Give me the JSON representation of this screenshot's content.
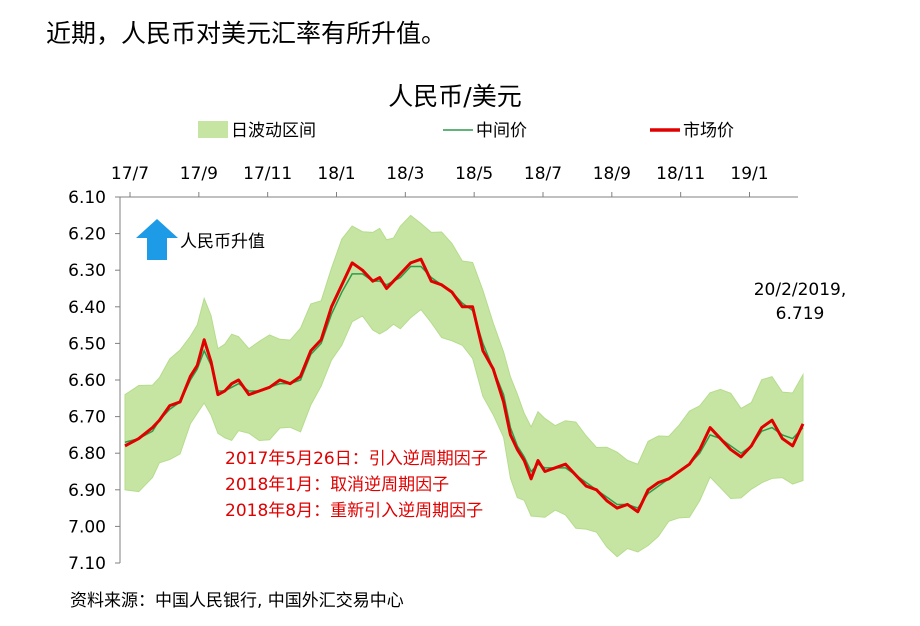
{
  "headline": "近期，人民币对美元汇率有所升值。",
  "source": "资料来源：中国人民银行, 中国外汇交易中心",
  "chart_data": {
    "type": "line",
    "title": "人民币/美元",
    "legend": {
      "band": "日波动区间",
      "mid": "中间价",
      "market": "市场价",
      "placement": "top"
    },
    "x_ticks": [
      "17/7",
      "17/9",
      "17/11",
      "18/1",
      "18/3",
      "18/5",
      "18/7",
      "18/9",
      "18/11",
      "19/1"
    ],
    "x_range_months": [
      0,
      19.7
    ],
    "y_ticks": [
      "6.10",
      "6.20",
      "6.30",
      "6.40",
      "6.50",
      "6.60",
      "6.70",
      "6.80",
      "6.90",
      "7.00",
      "7.10"
    ],
    "ylim": [
      6.1,
      7.1
    ],
    "y_inverted": true,
    "series": [
      {
        "name": "市场价",
        "x": [
          0.0,
          0.4,
          0.8,
          1.0,
          1.3,
          1.6,
          1.9,
          2.1,
          2.3,
          2.5,
          2.7,
          2.9,
          3.1,
          3.3,
          3.6,
          3.9,
          4.2,
          4.5,
          4.8,
          5.1,
          5.4,
          5.7,
          6.0,
          6.3,
          6.6,
          6.9,
          7.2,
          7.4,
          7.6,
          7.8,
          8.0,
          8.3,
          8.6,
          8.9,
          9.2,
          9.5,
          9.8,
          10.1,
          10.4,
          10.7,
          11.0,
          11.2,
          11.4,
          11.6,
          11.8,
          12.0,
          12.2,
          12.5,
          12.8,
          13.1,
          13.4,
          13.7,
          14.0,
          14.3,
          14.6,
          14.9,
          15.2,
          15.5,
          15.8,
          16.1,
          16.4,
          16.7,
          17.0,
          17.3,
          17.6,
          17.9,
          18.2,
          18.5,
          18.8,
          19.1,
          19.4,
          19.7
        ],
        "values": [
          6.78,
          6.76,
          6.73,
          6.71,
          6.67,
          6.66,
          6.59,
          6.56,
          6.49,
          6.55,
          6.64,
          6.63,
          6.61,
          6.6,
          6.64,
          6.63,
          6.62,
          6.6,
          6.61,
          6.59,
          6.52,
          6.49,
          6.4,
          6.34,
          6.28,
          6.3,
          6.33,
          6.32,
          6.35,
          6.33,
          6.31,
          6.28,
          6.27,
          6.33,
          6.34,
          6.36,
          6.4,
          6.4,
          6.52,
          6.57,
          6.66,
          6.75,
          6.79,
          6.82,
          6.87,
          6.82,
          6.85,
          6.84,
          6.83,
          6.86,
          6.89,
          6.9,
          6.93,
          6.95,
          6.94,
          6.96,
          6.9,
          6.88,
          6.87,
          6.85,
          6.83,
          6.79,
          6.73,
          6.76,
          6.79,
          6.81,
          6.78,
          6.73,
          6.71,
          6.76,
          6.78,
          6.72
        ]
      },
      {
        "name": "中间价",
        "x": [
          0.0,
          0.4,
          0.8,
          1.0,
          1.3,
          1.6,
          1.9,
          2.1,
          2.3,
          2.5,
          2.7,
          2.9,
          3.1,
          3.3,
          3.6,
          3.9,
          4.2,
          4.5,
          4.8,
          5.1,
          5.4,
          5.7,
          6.0,
          6.3,
          6.6,
          6.9,
          7.2,
          7.4,
          7.6,
          7.8,
          8.0,
          8.3,
          8.6,
          8.9,
          9.2,
          9.5,
          9.8,
          10.1,
          10.4,
          10.7,
          11.0,
          11.2,
          11.4,
          11.6,
          11.8,
          12.0,
          12.2,
          12.5,
          12.8,
          13.1,
          13.4,
          13.7,
          14.0,
          14.3,
          14.6,
          14.9,
          15.2,
          15.5,
          15.8,
          16.1,
          16.4,
          16.7,
          17.0,
          17.3,
          17.6,
          17.9,
          18.2,
          18.5,
          18.8,
          19.1,
          19.4,
          19.7
        ],
        "values": [
          6.77,
          6.76,
          6.74,
          6.71,
          6.68,
          6.66,
          6.6,
          6.57,
          6.52,
          6.56,
          6.63,
          6.63,
          6.62,
          6.61,
          6.63,
          6.63,
          6.62,
          6.61,
          6.61,
          6.6,
          6.53,
          6.5,
          6.42,
          6.36,
          6.31,
          6.31,
          6.33,
          6.33,
          6.34,
          6.33,
          6.32,
          6.29,
          6.29,
          6.32,
          6.34,
          6.36,
          6.39,
          6.41,
          6.5,
          6.57,
          6.64,
          6.73,
          6.78,
          6.81,
          6.85,
          6.83,
          6.84,
          6.84,
          6.84,
          6.86,
          6.88,
          6.9,
          6.92,
          6.94,
          6.94,
          6.95,
          6.91,
          6.89,
          6.87,
          6.85,
          6.83,
          6.8,
          6.75,
          6.76,
          6.78,
          6.8,
          6.78,
          6.74,
          6.73,
          6.75,
          6.76,
          6.73
        ]
      }
    ],
    "band_halfwidth": 0.13,
    "annotations": {
      "appreciation": "人民币升值",
      "latest": [
        "20/2/2019,",
        "6.719"
      ],
      "policy_notes": [
        "2017年5月26日：引入逆周期因子",
        "2018年1月：取消逆周期因子",
        "2018年8月：重新引入逆周期因子"
      ]
    }
  },
  "colors": {
    "band": "#c6e5a3",
    "mid": "#2f9a4a",
    "market": "#e00000",
    "arrow": "#1e9be6",
    "notes": "#e00000"
  }
}
